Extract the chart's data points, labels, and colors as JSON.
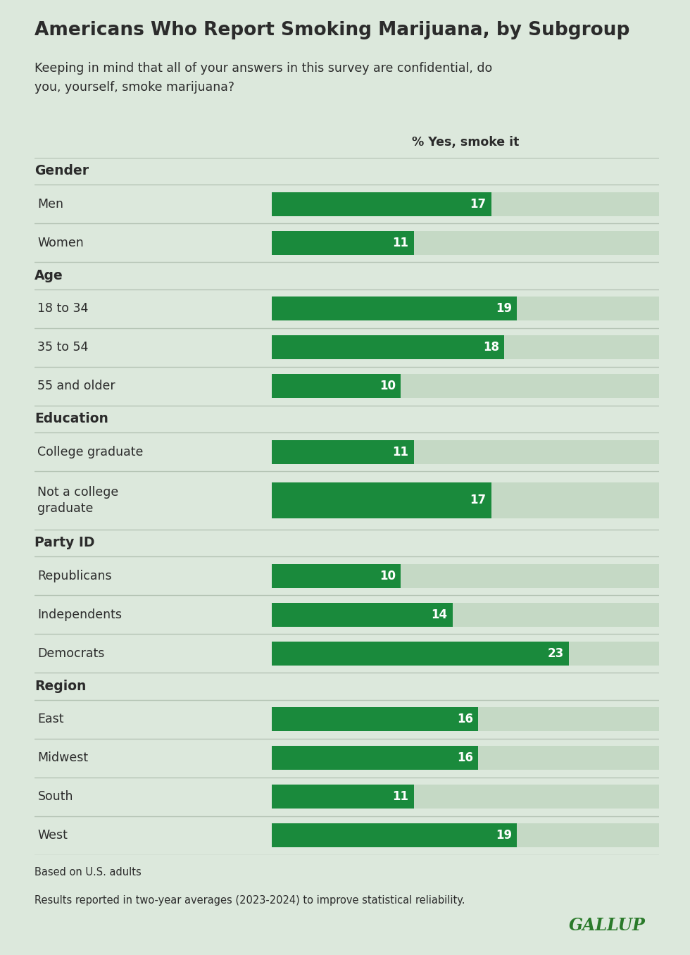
{
  "title": "Americans Who Report Smoking Marijuana, by Subgroup",
  "subtitle": "Keeping in mind that all of your answers in this survey are confidential, do\nyou, yourself, smoke marijuana?",
  "column_header": "% Yes, smoke it",
  "background_color": "#dce8dc",
  "bar_bg_color": "#c5d9c5",
  "bar_fg_color": "#1a8a3c",
  "text_color": "#2b2b2b",
  "footnote1": "Based on U.S. adults",
  "footnote2": "Results reported in two-year averages (2023-2024) to improve statistical reliability.",
  "gallup_text": "GALLUP",
  "max_value": 30,
  "categories": [
    {
      "label": "Gender",
      "is_header": true,
      "value": null
    },
    {
      "label": "Men",
      "is_header": false,
      "value": 17
    },
    {
      "label": "Women",
      "is_header": false,
      "value": 11
    },
    {
      "label": "Age",
      "is_header": true,
      "value": null
    },
    {
      "label": "18 to 34",
      "is_header": false,
      "value": 19
    },
    {
      "label": "35 to 54",
      "is_header": false,
      "value": 18
    },
    {
      "label": "55 and older",
      "is_header": false,
      "value": 10
    },
    {
      "label": "Education",
      "is_header": true,
      "value": null
    },
    {
      "label": "College graduate",
      "is_header": false,
      "value": 11
    },
    {
      "label": "Not a college\ngraduate",
      "is_header": false,
      "value": 17
    },
    {
      "label": "Party ID",
      "is_header": true,
      "value": null
    },
    {
      "label": "Republicans",
      "is_header": false,
      "value": 10
    },
    {
      "label": "Independents",
      "is_header": false,
      "value": 14
    },
    {
      "label": "Democrats",
      "is_header": false,
      "value": 23
    },
    {
      "label": "Region",
      "is_header": true,
      "value": null
    },
    {
      "label": "East",
      "is_header": false,
      "value": 16
    },
    {
      "label": "Midwest",
      "is_header": false,
      "value": 16
    },
    {
      "label": "South",
      "is_header": false,
      "value": 11
    },
    {
      "label": "West",
      "is_header": false,
      "value": 19
    }
  ]
}
